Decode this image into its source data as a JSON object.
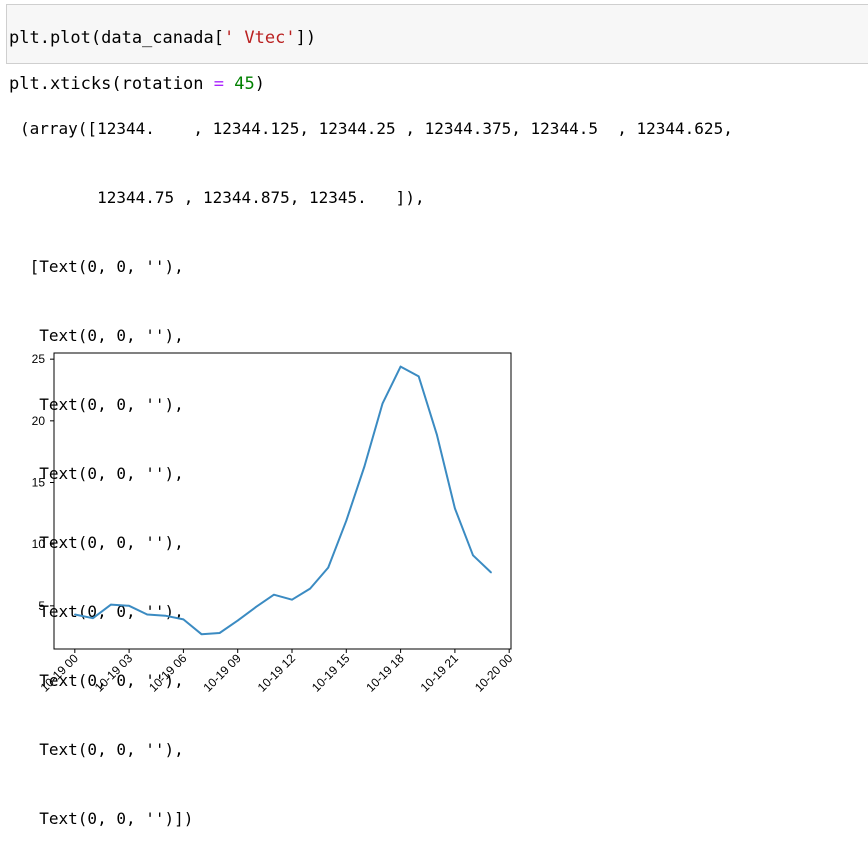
{
  "input_cell": {
    "line1": {
      "prefix": "plt.plot(data_canada[",
      "str": "' Vtec'",
      "suffix": "])"
    },
    "line2": {
      "prefix": "plt.xticks(rotation ",
      "op": "=",
      "space": " ",
      "num": "45",
      "suffix": ")"
    }
  },
  "output_text": [
    "(array([12344.    , 12344.125, 12344.25 , 12344.375, 12344.5  , 12344.625,",
    "        12344.75 , 12344.875, 12345.   ]),",
    " [Text(0, 0, ''),",
    "  Text(0, 0, ''),",
    "  Text(0, 0, ''),",
    "  Text(0, 0, ''),",
    "  Text(0, 0, ''),",
    "  Text(0, 0, ''),",
    "  Text(0, 0, ''),",
    "  Text(0, 0, ''),",
    "  Text(0, 0, '')])"
  ],
  "chart_data": {
    "type": "line",
    "title": "",
    "xlabel": "",
    "ylabel": "",
    "grid": false,
    "legend": "none",
    "line_color": "#3b8bc2",
    "x": [
      "10-19 00",
      "10-19 01",
      "10-19 02",
      "10-19 03",
      "10-19 04",
      "10-19 05",
      "10-19 06",
      "10-19 07",
      "10-19 08",
      "10-19 09",
      "10-19 10",
      "10-19 11",
      "10-19 12",
      "10-19 13",
      "10-19 14",
      "10-19 15",
      "10-19 16",
      "10-19 17",
      "10-19 18",
      "10-19 19",
      "10-19 20",
      "10-19 21",
      "10-19 22",
      "10-19 23"
    ],
    "y": [
      4.3,
      4.0,
      5.1,
      5.0,
      4.3,
      4.2,
      3.9,
      2.7,
      2.8,
      3.8,
      4.9,
      5.9,
      5.5,
      6.4,
      8.1,
      11.9,
      16.3,
      21.4,
      24.4,
      23.6,
      18.9,
      12.9,
      9.1,
      7.7
    ],
    "xticks": [
      "10-19 00",
      "10-19 03",
      "10-19 06",
      "10-19 09",
      "10-19 12",
      "10-19 15",
      "10-19 18",
      "10-19 21",
      "10-20 00"
    ],
    "xtick_rotation": 45,
    "yticks": [
      5,
      10,
      15,
      20,
      25
    ],
    "ylim": [
      1.5,
      25.5
    ],
    "xlim_hours": [
      -1.15,
      24.1
    ]
  }
}
